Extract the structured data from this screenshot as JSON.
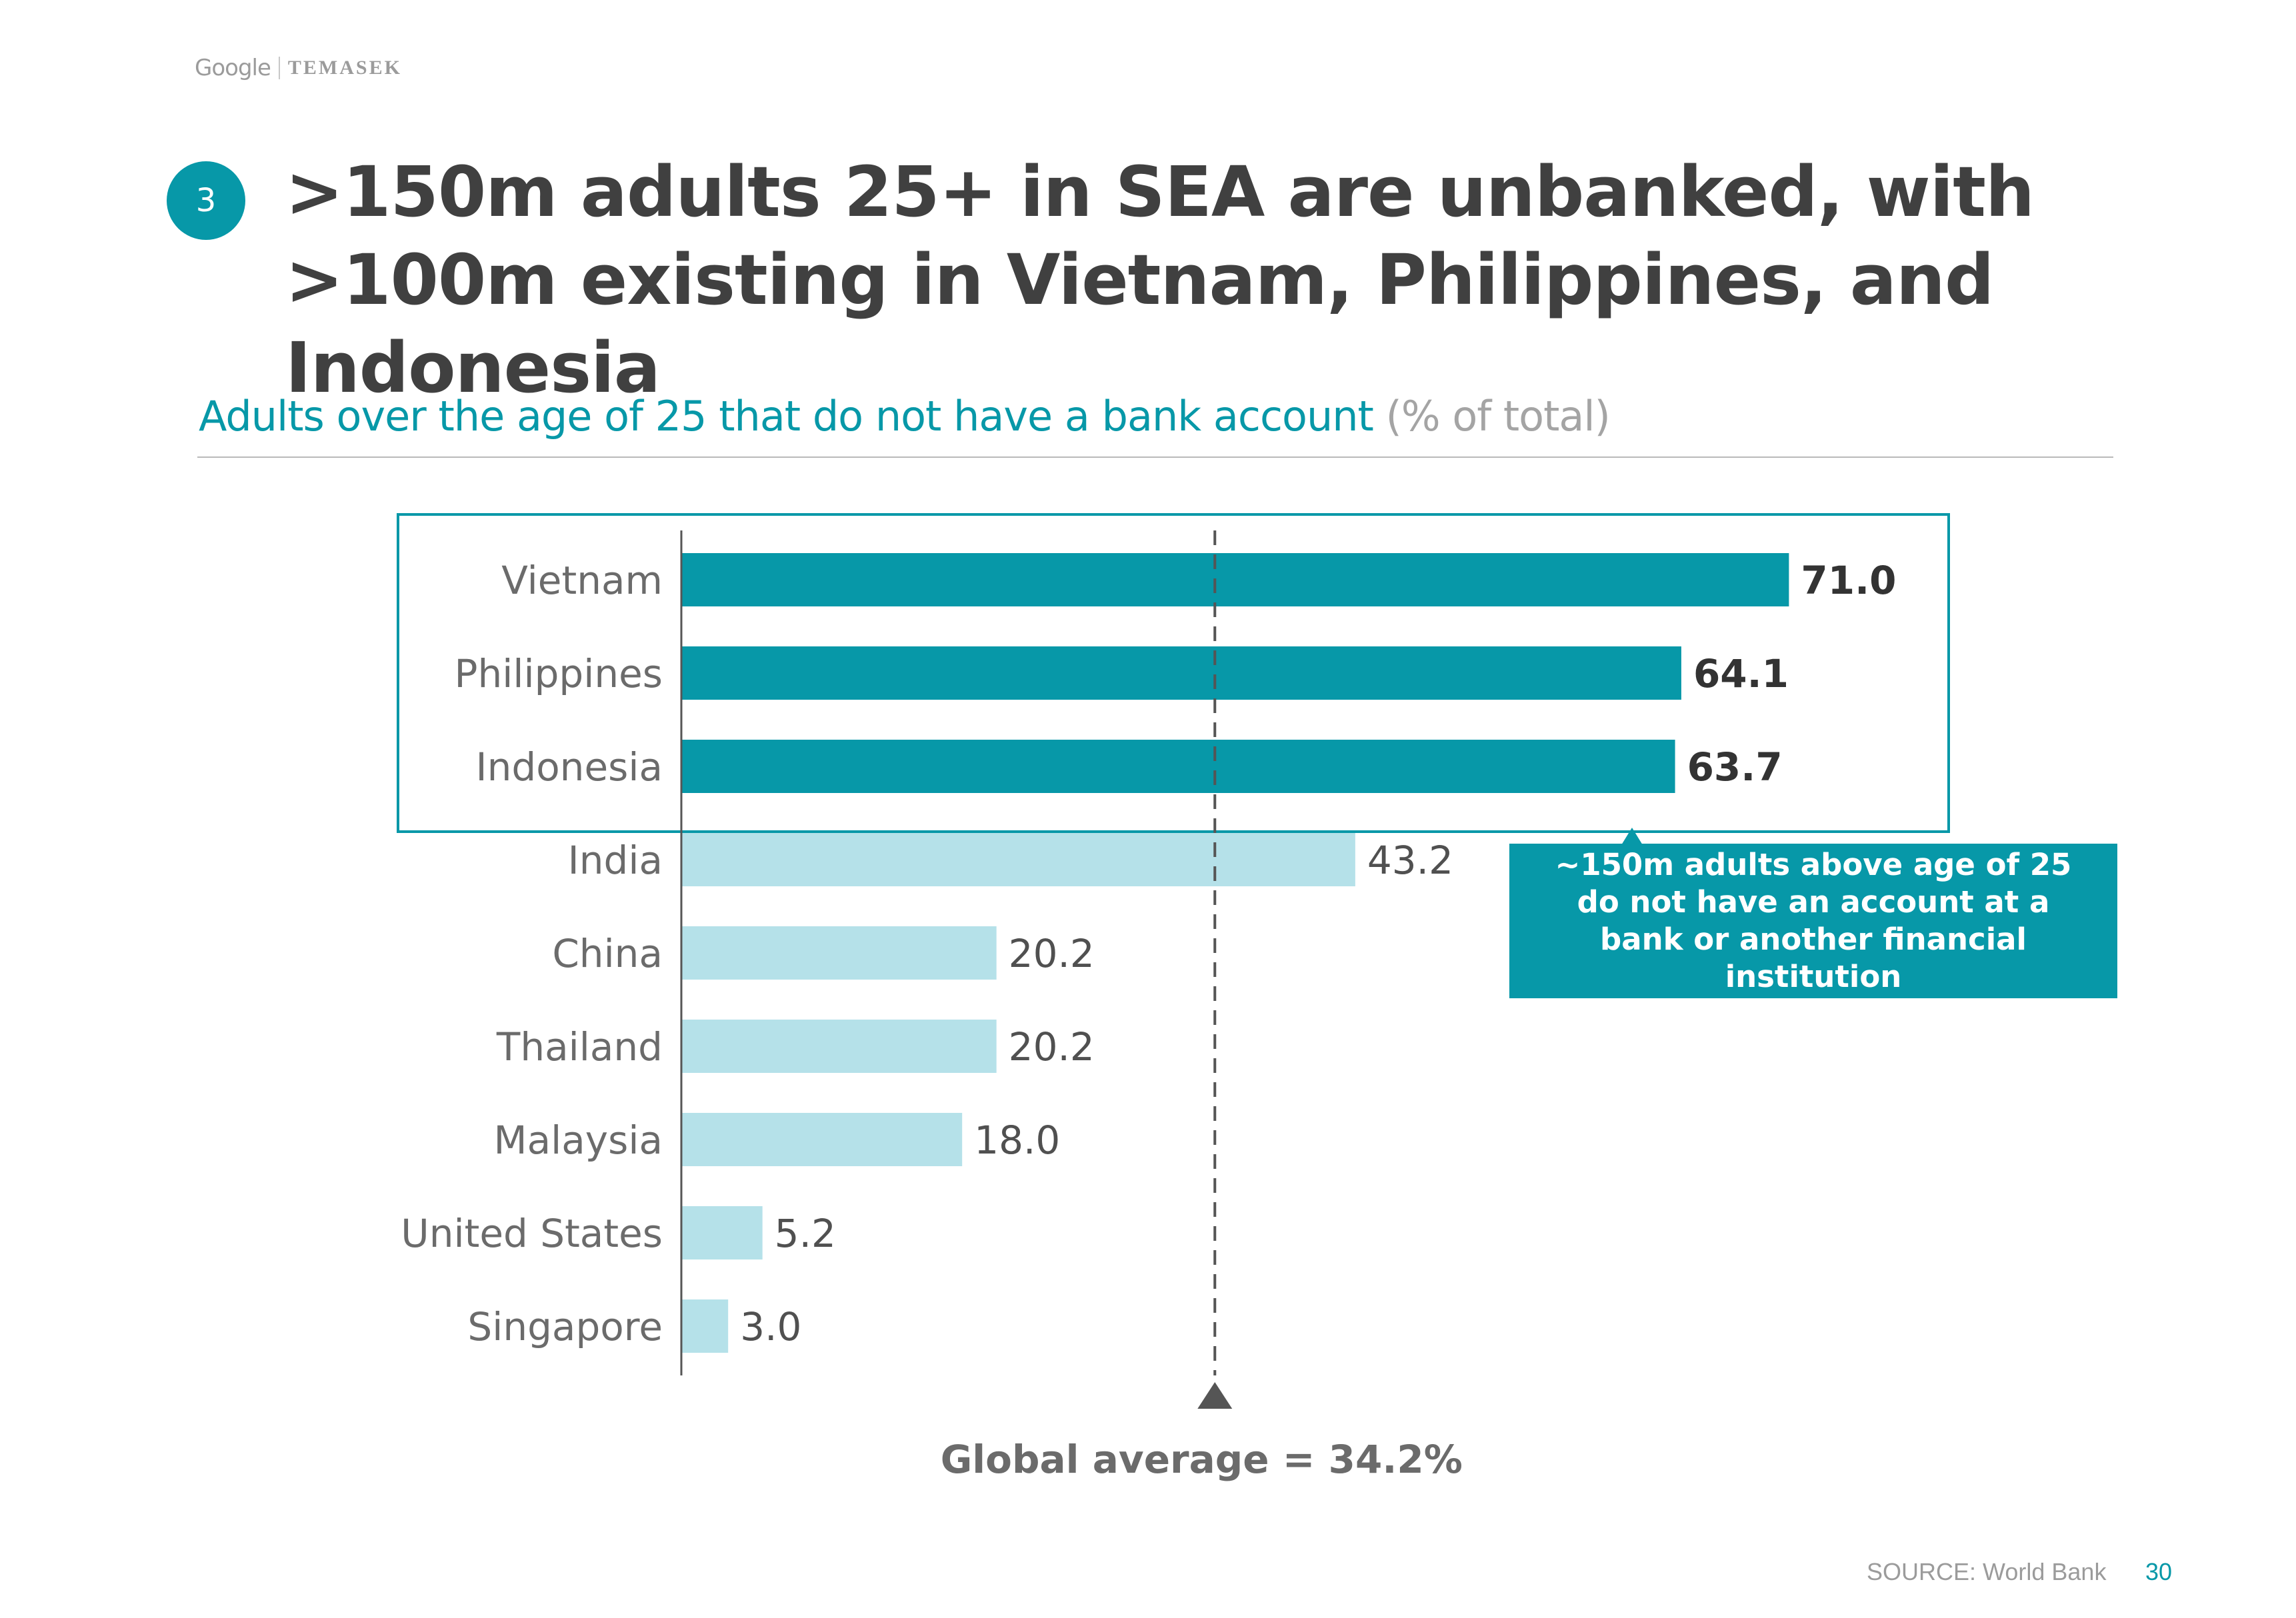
{
  "header": {
    "logo_google": "Google",
    "logo_temasek": "TEMASEK",
    "section_number": "3",
    "title": ">150m adults 25+ in SEA are unbanked, with >100m existing in Vietnam, Philippines, and Indonesia"
  },
  "subtitle": {
    "text": "Adults over the age of 25 that do not have a bank account",
    "unit": "(% of total)"
  },
  "callout": {
    "text": "~150m adults above age of 25 do not have an account at a bank or another financial institution"
  },
  "footer": {
    "source": "SOURCE: World Bank",
    "page_number": "30"
  },
  "colors": {
    "highlight": "#0798a8",
    "light": "#b5e1e9",
    "text_dark": "#404040",
    "text_grey": "#6b6b6b"
  },
  "chart_data": {
    "type": "bar",
    "orientation": "horizontal",
    "title": "Adults over the age of 25 that do not have a bank account (% of total)",
    "xlabel": "",
    "ylabel": "",
    "categories": [
      "Vietnam",
      "Philippines",
      "Indonesia",
      "India",
      "China",
      "Thailand",
      "Malaysia",
      "United States",
      "Singapore"
    ],
    "values": [
      71.0,
      64.1,
      63.7,
      43.2,
      20.2,
      20.2,
      18.0,
      5.2,
      3.0
    ],
    "value_labels": [
      "71.0",
      "64.1",
      "63.7",
      "43.2",
      "20.2",
      "20.2",
      "18.0",
      "5.2",
      "3.0"
    ],
    "highlighted": [
      true,
      true,
      true,
      false,
      false,
      false,
      false,
      false,
      false
    ],
    "xlim": [
      0,
      80
    ],
    "grid": false,
    "reference_line": {
      "value": 34.2,
      "label": "Global average = 34.2%"
    }
  }
}
